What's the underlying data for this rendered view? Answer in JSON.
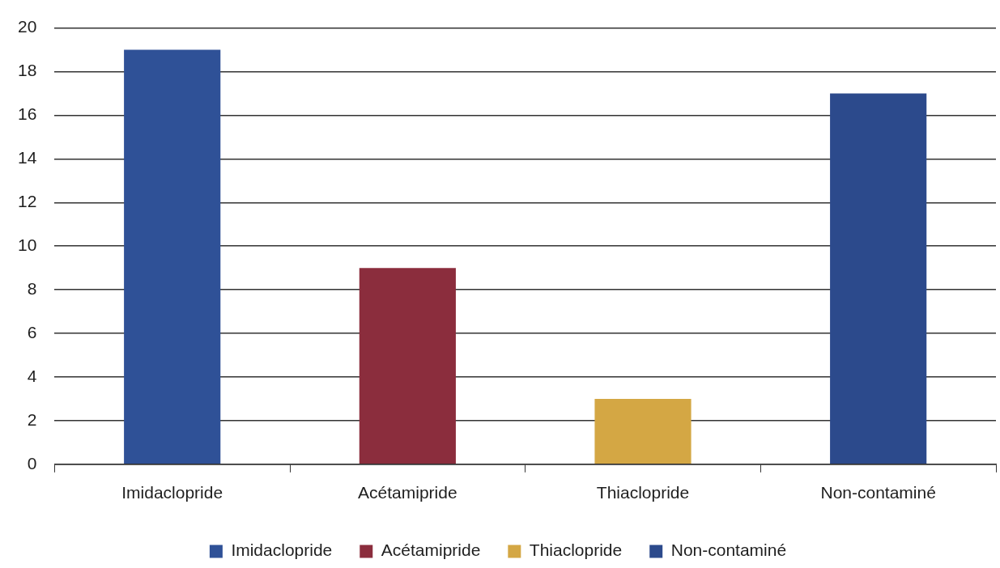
{
  "chart_data": {
    "type": "bar",
    "categories": [
      "Imidaclopride",
      "Acétamipride",
      "Thiaclopride",
      "Non-contaminé"
    ],
    "series": [
      {
        "name": "Imidaclopride",
        "color": "#2f5197",
        "values": [
          19,
          null,
          null,
          null
        ]
      },
      {
        "name": "Acétamipride",
        "color": "#8b2d3d",
        "values": [
          null,
          9,
          null,
          null
        ]
      },
      {
        "name": "Thiaclopride",
        "color": "#d4a744",
        "values": [
          null,
          null,
          3,
          null
        ]
      },
      {
        "name": "Non-contaminé",
        "color": "#2c4a8c",
        "values": [
          null,
          null,
          null,
          17
        ]
      }
    ],
    "ylim": [
      0,
      20
    ],
    "yticks": [
      0,
      2,
      4,
      6,
      8,
      10,
      12,
      14,
      16,
      18,
      20
    ],
    "grid": "y",
    "legend": "bottom"
  }
}
